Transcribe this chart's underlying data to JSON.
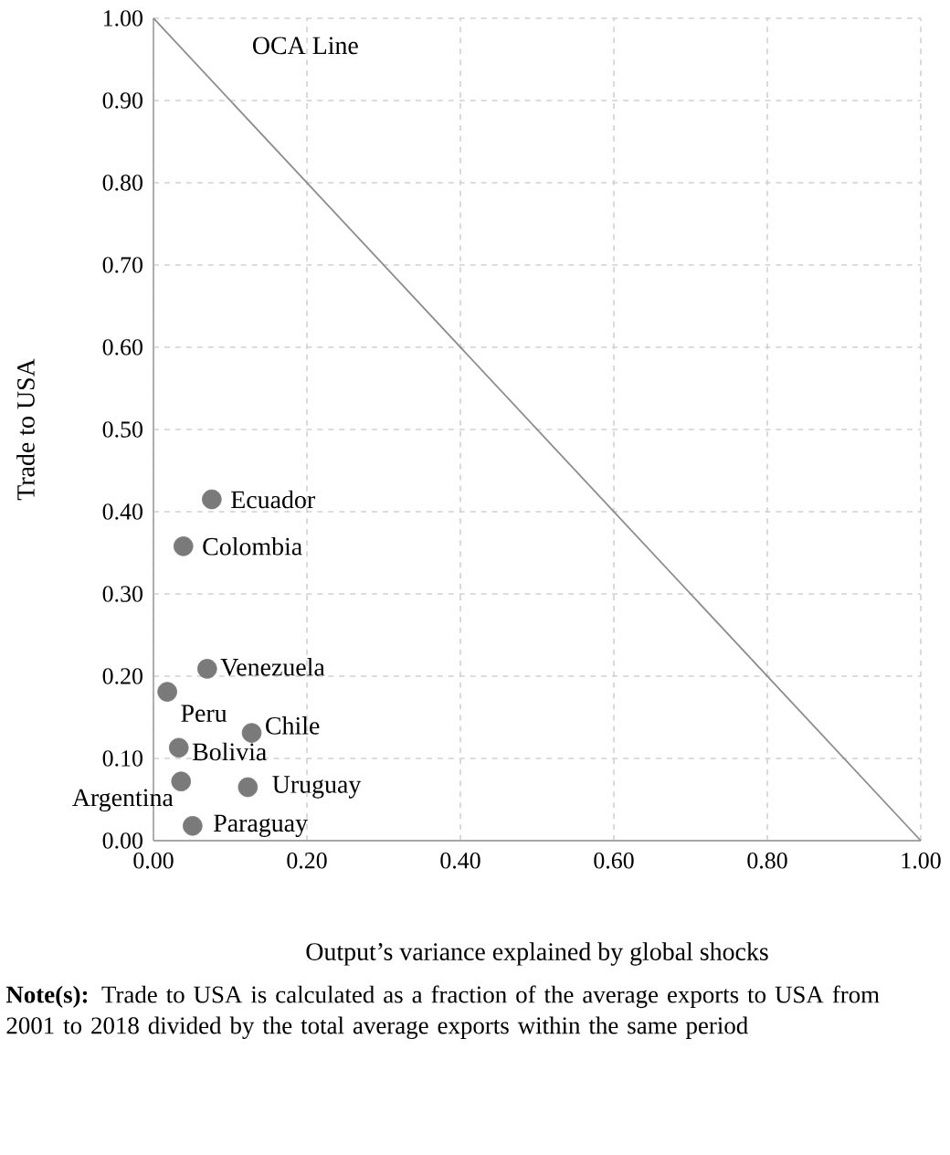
{
  "chart_data": {
    "type": "scatter",
    "xlabel": "Output’s variance explained by global shocks",
    "ylabel": "Trade to USA",
    "xlim": [
      0,
      1
    ],
    "ylim": [
      0,
      1
    ],
    "xticks": [
      {
        "value": 0,
        "label": "0.00"
      },
      {
        "value": 0.2,
        "label": "0.20"
      },
      {
        "value": 0.4,
        "label": "0.40"
      },
      {
        "value": 0.6,
        "label": "0.60"
      },
      {
        "value": 0.8,
        "label": "0.80"
      },
      {
        "value": 1,
        "label": "1.00"
      }
    ],
    "yticks": [
      {
        "value": 0,
        "label": "0.00"
      },
      {
        "value": 0.1,
        "label": "0.10"
      },
      {
        "value": 0.2,
        "label": "0.20"
      },
      {
        "value": 0.3,
        "label": "0.30"
      },
      {
        "value": 0.4,
        "label": "0.40"
      },
      {
        "value": 0.5,
        "label": "0.50"
      },
      {
        "value": 0.6,
        "label": "0.60"
      },
      {
        "value": 0.7,
        "label": "0.70"
      },
      {
        "value": 0.8,
        "label": "0.80"
      },
      {
        "value": 0.9,
        "label": "0.90"
      },
      {
        "value": 1,
        "label": "1.00"
      }
    ],
    "grid": true,
    "marker": "circle",
    "series": [
      {
        "color": "#7a7a7a",
        "x": [
          0.076,
          0.039,
          0.07,
          0.018,
          0.128,
          0.033,
          0.036,
          0.123,
          0.051
        ],
        "values": [
          0.415,
          0.358,
          0.209,
          0.181,
          0.131,
          0.113,
          0.072,
          0.065,
          0.018
        ]
      },
      {
        "type": "line",
        "name": "OCA Line",
        "color": "#8c8c8c",
        "marker": "none",
        "x": [
          0,
          1
        ],
        "values": [
          1,
          0
        ]
      }
    ],
    "annotations": [
      {
        "text": "Ecuador",
        "x": 0.076,
        "y": 0.415
      },
      {
        "text": "Colombia",
        "x": 0.039,
        "y": 0.358
      },
      {
        "text": "Venezuela",
        "x": 0.07,
        "y": 0.209
      },
      {
        "text": "Peru",
        "x": 0.018,
        "y": 0.181
      },
      {
        "text": "Chile",
        "x": 0.128,
        "y": 0.131
      },
      {
        "text": "Bolivia",
        "x": 0.033,
        "y": 0.113
      },
      {
        "text": "Argentina",
        "x": 0.036,
        "y": 0.072
      },
      {
        "text": "Uruguay",
        "x": 0.123,
        "y": 0.065
      },
      {
        "text": "Paraguay",
        "x": 0.051,
        "y": 0.018
      },
      "**Note(s):** Trade to USA is calculated as a fraction of the average exports to USA from 2001 to 2018 divided by the total average exports within the same period"
    ]
  }
}
